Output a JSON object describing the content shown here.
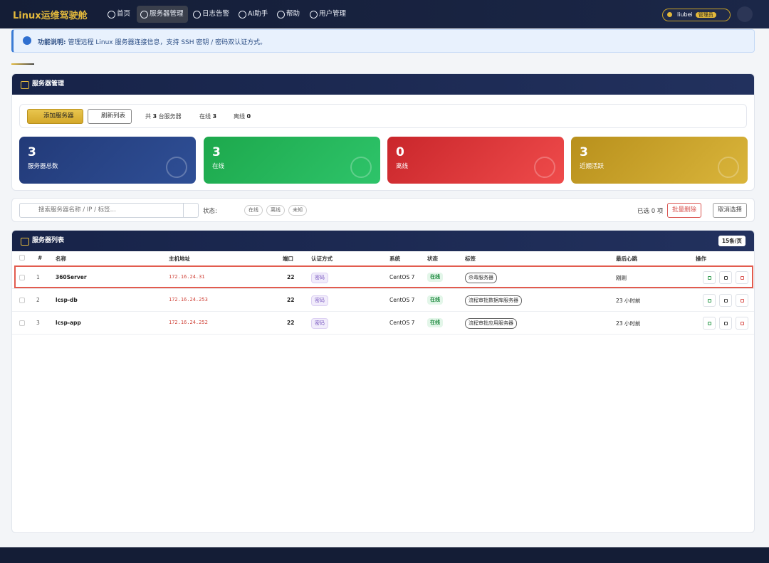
{
  "nav": {
    "brand": "Linux运维驾驶舱",
    "items": [
      "首页",
      "服务器管理",
      "日志告警",
      "AI助手",
      "帮助",
      "用户管理"
    ],
    "user": "liubei",
    "role": "管理员"
  },
  "notice": {
    "label": "功能说明:",
    "text": "管理远程 Linux 服务器连接信息，支持 SSH 密钥 / 密码双认证方式。"
  },
  "panel": {
    "title": "服务器管理",
    "buttons": [
      "添加服务器",
      "刷新列表"
    ],
    "summary": [
      {
        "prefix": "共",
        "count": 3,
        "suffix": "台服务器"
      },
      {
        "prefix": "在线",
        "count": 3
      },
      {
        "prefix": "离线",
        "count": 0
      }
    ],
    "cards": [
      {
        "value": 3,
        "label": "服务器总数"
      },
      {
        "value": 3,
        "label": "在线"
      },
      {
        "value": 0,
        "label": "离线"
      },
      {
        "value": 3,
        "label": "近期活跃"
      }
    ]
  },
  "filter": {
    "placeholder": "搜索服务器名称 / IP / 标签...",
    "status_label": "状态:",
    "chips": [
      "在线",
      "离线",
      "未知"
    ],
    "selected": "已选 0 项",
    "buttons": [
      "批量删除",
      "取消选择"
    ]
  },
  "table": {
    "title": "服务器列表",
    "page_size": "15条/页",
    "columns": [
      "#",
      "名称",
      "主机地址",
      "端口",
      "认证方式",
      "系统",
      "状态",
      "标签",
      "最后心跳",
      "操作"
    ],
    "rows": [
      [
        1,
        "360Server",
        "172.16.24.31",
        22,
        "密码",
        "CentOS 7",
        "在线",
        "杀毒服务器",
        "刚刚"
      ],
      [
        2,
        "lcsp-db",
        "172.16.24.253",
        22,
        "密码",
        "CentOS 7",
        "在线",
        "流程审批数据库服务器",
        "23 小时前"
      ],
      [
        3,
        "lcsp-app",
        "172.16.24.252",
        22,
        "密码",
        "CentOS 7",
        "在线",
        "流程审批应用服务器",
        "23 小时前"
      ]
    ]
  }
}
